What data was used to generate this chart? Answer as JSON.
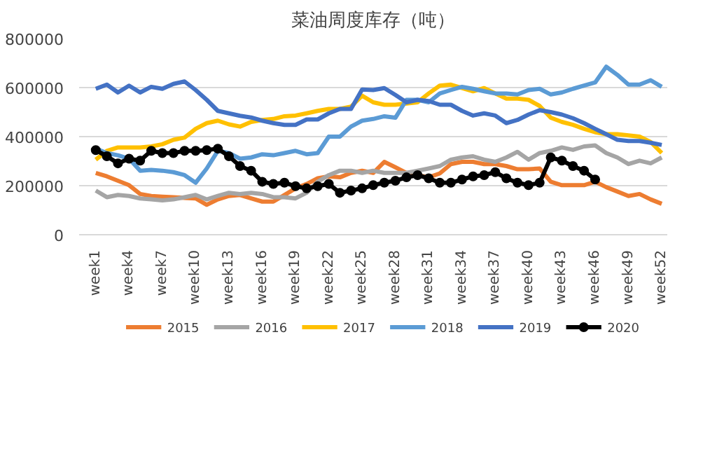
{
  "chart_data": {
    "type": "line",
    "title": "菜油周度库存（吨）",
    "categories": [
      "week1",
      null,
      null,
      "week4",
      null,
      null,
      "week7",
      null,
      null,
      "week10",
      null,
      null,
      "week13",
      null,
      null,
      "week16",
      null,
      null,
      "week19",
      null,
      null,
      "week22",
      null,
      null,
      "week25",
      null,
      null,
      "week28",
      null,
      null,
      "week31",
      null,
      null,
      "week34",
      null,
      null,
      "week37",
      null,
      null,
      "week40",
      null,
      null,
      "week43",
      null,
      null,
      "week46",
      null,
      null,
      "week49",
      null,
      null,
      "week52"
    ],
    "ylim": [
      0,
      800000
    ],
    "yticks": [
      0,
      200000,
      400000,
      600000,
      800000
    ],
    "grid": "y",
    "legend": "bottom",
    "marker": "none",
    "line_style": "solid",
    "series": [
      {
        "name": "2015",
        "color": "#ed7d31",
        "values": [
          252000,
          238000,
          220000,
          202000,
          166000,
          158000,
          155000,
          153000,
          150000,
          148000,
          122000,
          144000,
          158000,
          162000,
          148000,
          135000,
          135000,
          162000,
          189000,
          207000,
          230000,
          238000,
          234000,
          252000,
          261000,
          252000,
          297000,
          275000,
          252000,
          243000,
          234000,
          250000,
          288000,
          297000,
          297000,
          288000,
          288000,
          280000,
          267000,
          267000,
          270000,
          216000,
          202000,
          202000,
          202000,
          216000,
          194000,
          176000,
          158000,
          166000,
          144000,
          126000
        ]
      },
      {
        "name": "2016",
        "color": "#a5a5a5",
        "values": [
          180000,
          153000,
          162000,
          158000,
          148000,
          144000,
          140000,
          144000,
          153000,
          162000,
          144000,
          158000,
          171000,
          166000,
          171000,
          166000,
          153000,
          153000,
          148000,
          171000,
          216000,
          243000,
          261000,
          261000,
          252000,
          261000,
          252000,
          252000,
          252000,
          261000,
          270000,
          280000,
          306000,
          315000,
          320000,
          306000,
          297000,
          315000,
          338000,
          306000,
          333000,
          342000,
          356000,
          346000,
          360000,
          364000,
          333000,
          315000,
          288000,
          302000,
          291000,
          315000
        ]
      },
      {
        "name": "2017",
        "color": "#ffc000",
        "values": [
          306000,
          342000,
          356000,
          356000,
          356000,
          360000,
          369000,
          387000,
          396000,
          432000,
          455000,
          465000,
          450000,
          441000,
          460000,
          468000,
          472000,
          483000,
          486000,
          495000,
          505000,
          513000,
          513000,
          522000,
          567000,
          540000,
          530000,
          530000,
          535000,
          540000,
          576000,
          608000,
          612000,
          598000,
          585000,
          598000,
          576000,
          555000,
          555000,
          550000,
          525000,
          477000,
          460000,
          448000,
          432000,
          418000,
          410000,
          410000,
          405000,
          400000,
          378000,
          333000
        ]
      },
      {
        "name": "2018",
        "color": "#5b9bd5",
        "values": [
          351000,
          333000,
          324000,
          310000,
          261000,
          264000,
          261000,
          255000,
          243000,
          212000,
          270000,
          342000,
          333000,
          310000,
          315000,
          328000,
          324000,
          333000,
          342000,
          328000,
          333000,
          400000,
          400000,
          441000,
          465000,
          472000,
          483000,
          477000,
          550000,
          550000,
          540000,
          576000,
          590000,
          603000,
          595000,
          585000,
          576000,
          576000,
          572000,
          590000,
          595000,
          572000,
          580000,
          595000,
          608000,
          621000,
          685000,
          652000,
          612000,
          612000,
          630000,
          603000
        ]
      },
      {
        "name": "2019",
        "color": "#4472c4",
        "values": [
          595000,
          612000,
          580000,
          608000,
          580000,
          603000,
          595000,
          615000,
          625000,
          590000,
          550000,
          505000,
          495000,
          485000,
          478000,
          465000,
          455000,
          448000,
          448000,
          470000,
          470000,
          495000,
          513000,
          513000,
          592000,
          590000,
          598000,
          570000,
          540000,
          550000,
          545000,
          530000,
          530000,
          505000,
          486000,
          495000,
          486000,
          455000,
          468000,
          490000,
          508000,
          500000,
          490000,
          475000,
          455000,
          432000,
          410000,
          387000,
          382000,
          382000,
          375000,
          366000
        ]
      },
      {
        "name": "2020",
        "color": "#000000",
        "marker": "circle",
        "values": [
          345000,
          320000,
          291000,
          310000,
          302000,
          342000,
          333000,
          333000,
          342000,
          342000,
          345000,
          351000,
          320000,
          280000,
          261000,
          216000,
          207000,
          212000,
          198000,
          189000,
          198000,
          207000,
          171000,
          180000,
          189000,
          202000,
          212000,
          220000,
          234000,
          243000,
          230000,
          212000,
          212000,
          225000,
          238000,
          243000,
          255000,
          230000,
          212000,
          202000,
          212000,
          315000,
          302000,
          280000,
          261000,
          225000,
          null,
          null,
          null,
          null,
          null,
          null
        ]
      }
    ]
  }
}
